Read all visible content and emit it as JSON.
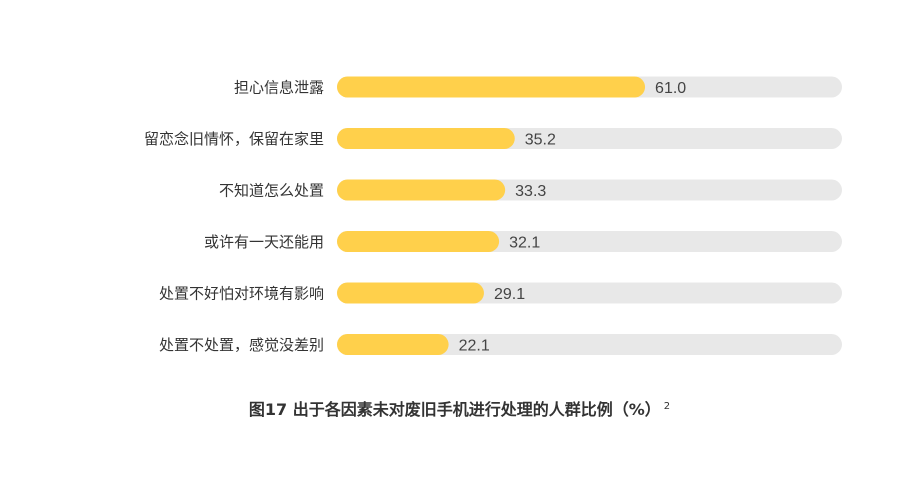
{
  "chart_data": {
    "type": "bar",
    "orientation": "horizontal",
    "categories": [
      "担心信息泄露",
      "留恋念旧情怀，保留在家里",
      "不知道怎么处置",
      "或许有一天还能用",
      "处置不好怕对环境有影响",
      "处置不处置，感觉没差别"
    ],
    "values": [
      61.0,
      35.2,
      33.3,
      32.1,
      29.1,
      22.1
    ],
    "value_labels": [
      "61.0",
      "35.2",
      "33.3",
      "32.1",
      "29.1",
      "22.1"
    ],
    "xlim": [
      0,
      100
    ],
    "grid": false,
    "legend": "none",
    "title": "图17  出于各因素未对废旧手机进行处理的人群比例（%）",
    "title_note": "2"
  },
  "colors": {
    "bar": "#FFD04B",
    "track": "#E8E8E8"
  }
}
